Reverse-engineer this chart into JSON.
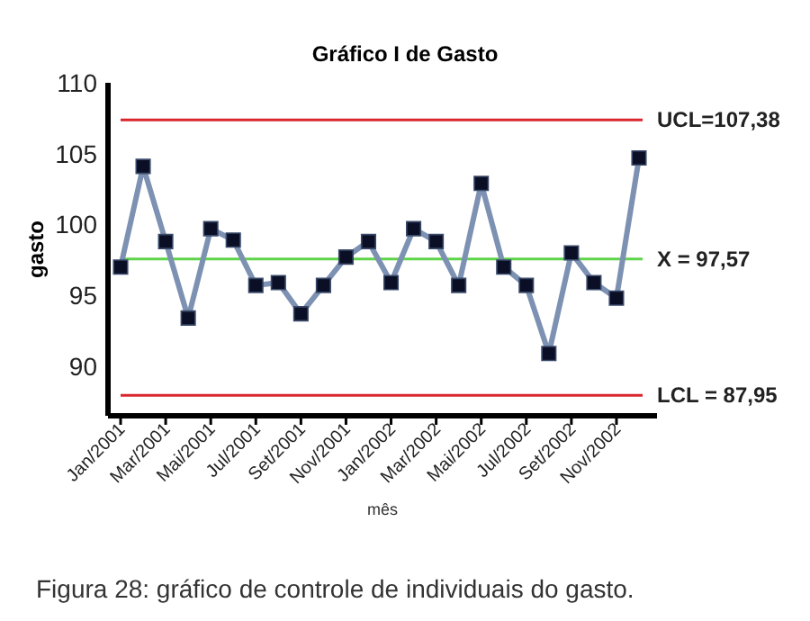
{
  "chart_data": {
    "type": "line",
    "title": "Gráfico I de Gasto",
    "xlabel": "mês",
    "ylabel": "gasto",
    "categories": [
      "Jan/2001",
      null,
      "Mar/2001",
      null,
      "Mai/2001",
      null,
      "Jul/2001",
      null,
      "Set/2001",
      null,
      "Nov/2001",
      null,
      "Jan/2002",
      null,
      "Mar/2002",
      null,
      "Mai/2002",
      null,
      "Jul/2002",
      null,
      "Set/2002",
      null,
      "Nov/2002",
      null
    ],
    "series": [
      {
        "color": "#7d91b3",
        "values": [
          97.0,
          104.1,
          98.8,
          93.4,
          99.7,
          98.9,
          95.7,
          95.9,
          93.7,
          95.7,
          97.7,
          98.8,
          95.9,
          99.7,
          98.8,
          95.7,
          102.9,
          97.0,
          95.7,
          90.9,
          98.0,
          95.9,
          94.8,
          104.7
        ]
      }
    ],
    "marker": "square",
    "ylim": [
      86.5,
      110
    ],
    "yticks": [
      90,
      95,
      100,
      105,
      110
    ],
    "grid": false,
    "ref_lines": [
      {
        "axis": "y",
        "value": 107.38,
        "label": "UCL=107,38",
        "color": "#d9262b"
      },
      {
        "axis": "y",
        "value": 97.57,
        "label": "X = 97,57",
        "color": "#5fd34a"
      },
      {
        "axis": "y",
        "value": 87.95,
        "label": "LCL = 87,95",
        "color": "#d9262b"
      }
    ],
    "annotations": [
      "Figura 28: gráfico de controle de individuais do gasto."
    ]
  }
}
